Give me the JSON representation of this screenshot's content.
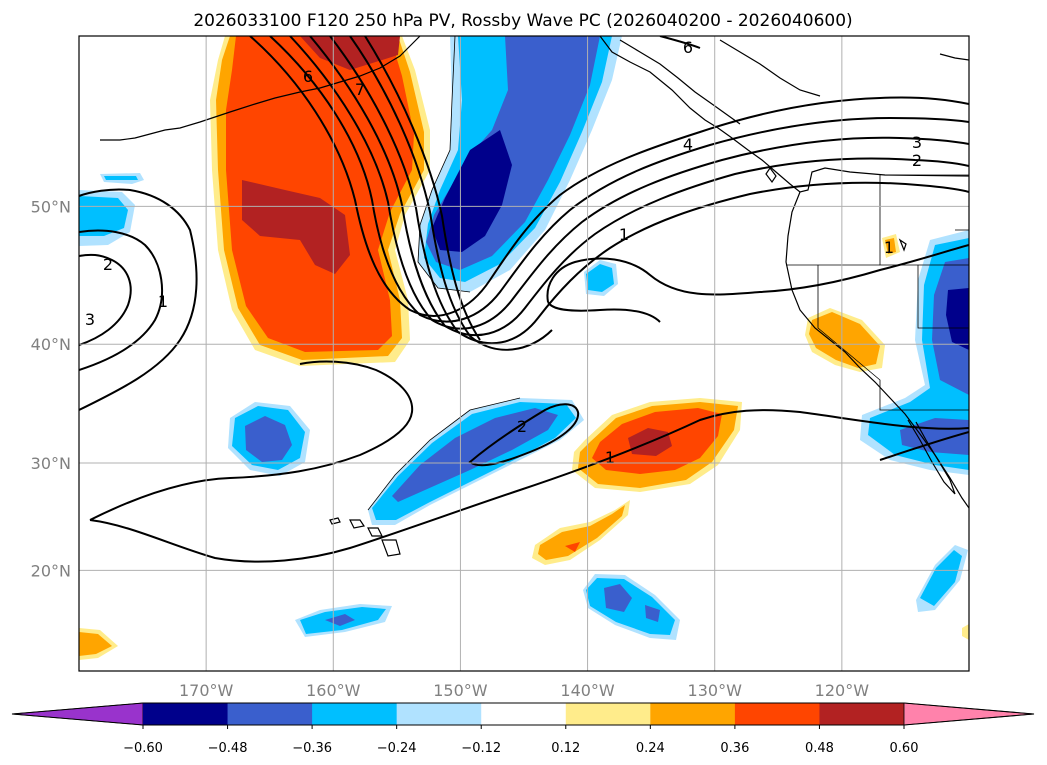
{
  "title": "2026033100 F120 250 hPa PV, Rossby Wave PC (2026040200 - 2026040600)",
  "lat_ticks": [
    {
      "label": "50°N",
      "lat": 50
    },
    {
      "label": "40°N",
      "lat": 40
    },
    {
      "label": "30°N",
      "lat": 30
    },
    {
      "label": "20°N",
      "lat": 20
    }
  ],
  "lon_ticks": [
    {
      "label": "170°W",
      "lon": -170
    },
    {
      "label": "160°W",
      "lon": -160
    },
    {
      "label": "150°W",
      "lon": -150
    },
    {
      "label": "140°W",
      "lon": -140
    },
    {
      "label": "130°W",
      "lon": -130
    },
    {
      "label": "120°W",
      "lon": -120
    }
  ],
  "map_extent": {
    "lon_min": -180,
    "lon_max": -110,
    "lat_min": 10,
    "lat_max": 60
  },
  "colorbar": {
    "labels": [
      "−0.60",
      "−0.48",
      "−0.36",
      "−0.24",
      "−0.12",
      "0.12",
      "0.24",
      "0.36",
      "0.48",
      "0.60"
    ],
    "colors": [
      "#9933cc",
      "#00008b",
      "#3a5fcd",
      "#00bfff",
      "#b0e2ff",
      "#ffffff",
      "#ffec8b",
      "#ffa500",
      "#ff4500",
      "#b22222",
      "#ff82ab"
    ]
  },
  "contour_labels": [
    "6",
    "7",
    "6",
    "4",
    "3",
    "2",
    "1",
    "2",
    "3",
    "1",
    "2",
    "1",
    "1"
  ],
  "shading_colors": {
    "darkblue": "#00008b",
    "blue": "#3a5fcd",
    "cyan": "#00bfff",
    "lightblue": "#b0e2ff",
    "yellow": "#ffec8b",
    "orange": "#ffa500",
    "redorange": "#ff4500",
    "darkred": "#b22222"
  }
}
